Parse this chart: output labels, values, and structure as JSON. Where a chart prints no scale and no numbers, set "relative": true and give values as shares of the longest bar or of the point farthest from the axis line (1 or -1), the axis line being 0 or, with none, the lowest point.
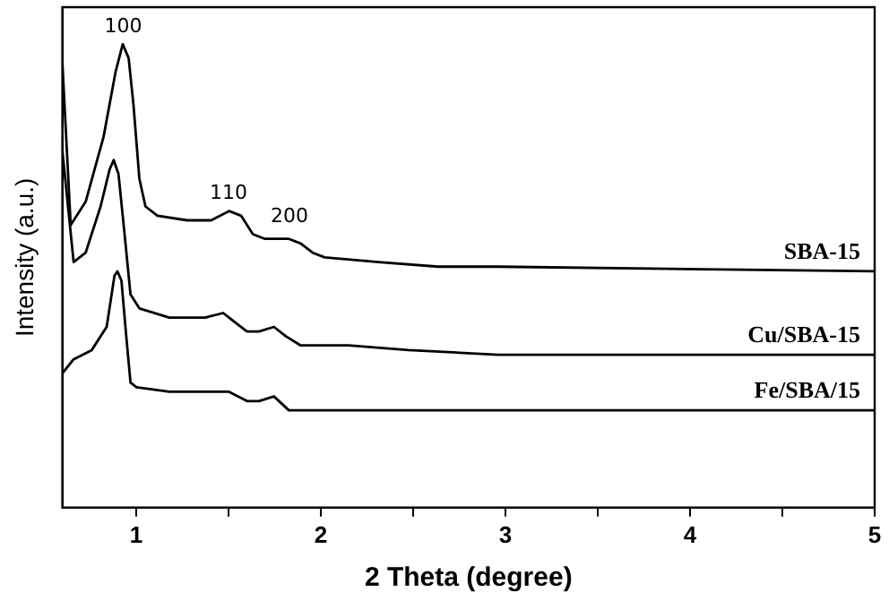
{
  "chart_data": {
    "type": "line",
    "xlabel": "2 Theta (degree)",
    "ylabel": "Intensity (a.u.)",
    "relative": true,
    "legend": false,
    "grid": false,
    "marker": "none",
    "line_style": "solid",
    "xlim": [
      0.6,
      5
    ],
    "xticks": [
      1,
      {
        "value": 1.5,
        "label": null
      },
      2,
      {
        "value": 2.5,
        "label": null
      },
      3,
      {
        "value": 3.5,
        "label": null
      },
      4,
      {
        "value": 4.5,
        "label": null
      },
      5
    ],
    "annotations": [
      {
        "text": "100",
        "x": 0.93,
        "y": 1.0
      },
      {
        "text": "110",
        "x": 1.5,
        "y": 0.64
      },
      {
        "text": "200",
        "x": 1.83,
        "y": 0.59
      }
    ],
    "series": [
      {
        "name": "SBA-15",
        "color": "#000000",
        "x": [
          0.6,
          0.645,
          0.726,
          0.823,
          0.888,
          0.927,
          0.959,
          0.985,
          1.017,
          1.05,
          1.115,
          1.276,
          1.406,
          1.503,
          1.568,
          1.632,
          1.697,
          1.827,
          1.891,
          1.956,
          2.021,
          2.312,
          2.636,
          2.959,
          5.0
        ],
        "values": [
          0.96,
          0.61,
          0.66,
          0.8,
          0.94,
          1.0,
          0.97,
          0.87,
          0.71,
          0.65,
          0.63,
          0.62,
          0.62,
          0.64,
          0.63,
          0.59,
          0.58,
          0.58,
          0.57,
          0.55,
          0.54,
          0.53,
          0.52,
          0.52,
          0.51
        ]
      },
      {
        "name": "Cu/SBA-15",
        "color": "#000000",
        "x": [
          0.6,
          0.661,
          0.726,
          0.807,
          0.856,
          0.878,
          0.904,
          0.937,
          0.969,
          1.017,
          1.179,
          1.373,
          1.471,
          1.535,
          1.6,
          1.665,
          1.746,
          1.81,
          1.891,
          2.15,
          2.474,
          2.959,
          5.0
        ],
        "values": [
          0.77,
          0.53,
          0.55,
          0.65,
          0.73,
          0.75,
          0.72,
          0.59,
          0.46,
          0.43,
          0.41,
          0.41,
          0.42,
          0.4,
          0.38,
          0.38,
          0.39,
          0.37,
          0.35,
          0.35,
          0.34,
          0.33,
          0.33
        ]
      },
      {
        "name": "Fe/SBA/15",
        "color": "#000000",
        "x": [
          0.6,
          0.661,
          0.759,
          0.84,
          0.882,
          0.898,
          0.92,
          0.946,
          0.969,
          1.001,
          1.179,
          1.406,
          1.503,
          1.6,
          1.665,
          1.746,
          1.827,
          1.988,
          2.312,
          2.959,
          5.0
        ],
        "values": [
          0.29,
          0.32,
          0.34,
          0.39,
          0.5,
          0.51,
          0.49,
          0.37,
          0.27,
          0.26,
          0.25,
          0.25,
          0.25,
          0.23,
          0.23,
          0.24,
          0.21,
          0.21,
          0.21,
          0.21,
          0.21
        ]
      }
    ]
  }
}
